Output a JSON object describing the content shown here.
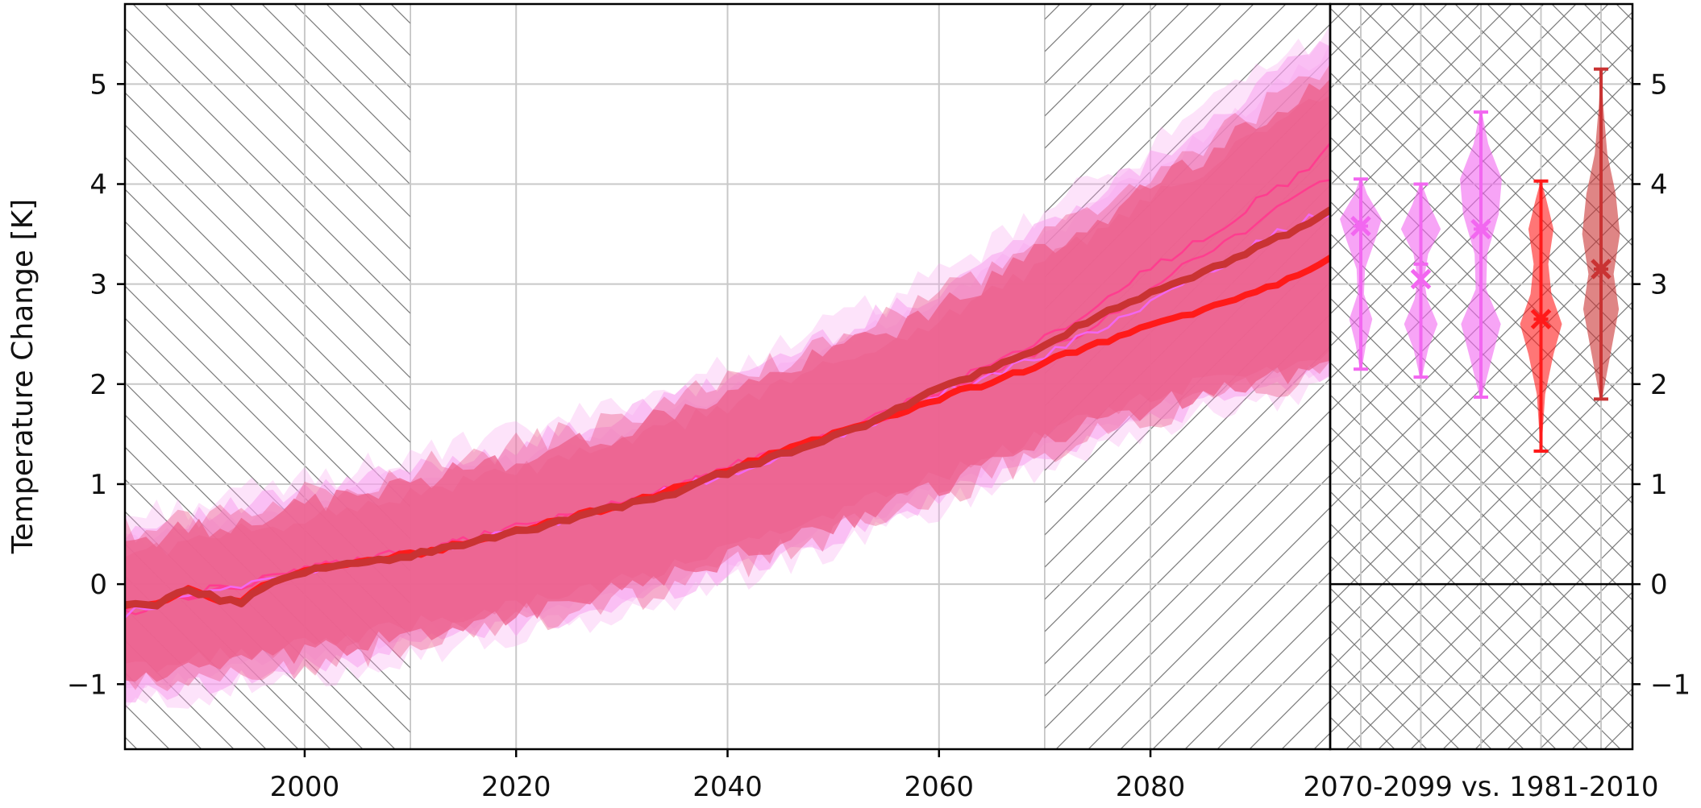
{
  "chart_data": [
    {
      "type": "line",
      "title": "",
      "xlabel": "",
      "ylabel": "Temperature Change [K]",
      "xlim": [
        1983,
        2097
      ],
      "ylim": [
        -1.65,
        5.8
      ],
      "xticks": [
        2000,
        2020,
        2040,
        2060,
        2080
      ],
      "yticks": [
        -1,
        0,
        1,
        2,
        3,
        4,
        5
      ],
      "ytick_labels": [
        "−1",
        "0",
        "1",
        "2",
        "3",
        "4",
        "5"
      ],
      "grid": true,
      "hatched_periods": [
        [
          1983,
          2010
        ],
        [
          2070,
          2097
        ]
      ],
      "colors": {
        "red": "#ff1a1a",
        "darkred": "#c93333",
        "pink": "#ff3d8f",
        "magenta": "#f267f0",
        "band": "#ec5f8a",
        "band_outer": "#f7a2ef"
      },
      "series": [
        {
          "x": [
            1983,
            1986,
            1989,
            1992,
            1994,
            1996,
            2000,
            2005,
            2010,
            2015,
            2020,
            2025,
            2030,
            2035,
            2040,
            2045,
            2050,
            2055,
            2060,
            2065,
            2070,
            2075,
            2080,
            2085,
            2090,
            2095,
            2097
          ],
          "values": [
            -0.22,
            -0.2,
            -0.06,
            -0.15,
            -0.18,
            -0.02,
            0.12,
            0.22,
            0.28,
            0.4,
            0.52,
            0.65,
            0.78,
            0.92,
            1.12,
            1.3,
            1.48,
            1.68,
            1.98,
            2.15,
            2.38,
            2.68,
            2.92,
            3.12,
            3.35,
            3.62,
            3.75
          ]
        },
        {
          "x": [
            1983,
            1986,
            1989,
            1992,
            1994,
            1996,
            2000,
            2005,
            2010,
            2015,
            2020,
            2025,
            2030,
            2035,
            2040,
            2045,
            2050,
            2055,
            2060,
            2065,
            2070,
            2075,
            2080,
            2085,
            2090,
            2095,
            2097
          ],
          "values": [
            -0.22,
            -0.2,
            -0.06,
            -0.15,
            -0.18,
            -0.02,
            0.12,
            0.22,
            0.3,
            0.4,
            0.53,
            0.66,
            0.8,
            0.95,
            1.13,
            1.33,
            1.5,
            1.68,
            1.86,
            2.02,
            2.22,
            2.4,
            2.58,
            2.73,
            2.92,
            3.12,
            3.26
          ]
        },
        {
          "x": [
            1983,
            1990,
            2000,
            2010,
            2020,
            2030,
            2040,
            2050,
            2060,
            2070,
            2075,
            2080,
            2085,
            2090,
            2095,
            2097
          ],
          "values": [
            -0.28,
            -0.1,
            0.15,
            0.32,
            0.55,
            0.8,
            1.16,
            1.5,
            1.95,
            2.45,
            2.8,
            3.15,
            3.45,
            3.82,
            4.15,
            4.45
          ]
        },
        {
          "x": [
            1983,
            1990,
            2000,
            2010,
            2020,
            2030,
            2040,
            2050,
            2060,
            2070,
            2075,
            2080,
            2085,
            2090,
            2095,
            2097
          ],
          "values": [
            -0.25,
            -0.08,
            0.14,
            0.3,
            0.56,
            0.82,
            1.14,
            1.46,
            1.9,
            2.35,
            2.6,
            2.95,
            3.3,
            3.6,
            3.95,
            4.05
          ]
        },
        {
          "x": [
            1983,
            1990,
            2000,
            2010,
            2020,
            2030,
            2040,
            2050,
            2060,
            2070,
            2075,
            2080,
            2085,
            2090,
            2095,
            2097
          ],
          "values": [
            -0.3,
            -0.1,
            0.12,
            0.3,
            0.52,
            0.8,
            1.1,
            1.45,
            1.9,
            2.3,
            2.55,
            2.8,
            3.1,
            3.4,
            3.65,
            3.72
          ]
        }
      ],
      "bands": [
        {
          "x": [
            1983,
            1990,
            2000,
            2010,
            2020,
            2030,
            2040,
            2050,
            2060,
            2070,
            2080,
            2090,
            2097
          ],
          "lower": [
            -1.15,
            -1.0,
            -0.85,
            -0.6,
            -0.42,
            -0.22,
            0.12,
            0.45,
            0.85,
            1.3,
            1.65,
            1.92,
            2.1
          ],
          "upper": [
            0.55,
            0.68,
            0.92,
            1.15,
            1.38,
            1.68,
            2.05,
            2.5,
            2.95,
            3.6,
            4.25,
            4.95,
            5.45
          ]
        },
        {
          "x": [
            1983,
            1990,
            2000,
            2010,
            2020,
            2030,
            2040,
            2050,
            2060,
            2070,
            2080,
            2090,
            2097
          ],
          "lower": [
            -0.95,
            -0.85,
            -0.72,
            -0.5,
            -0.3,
            -0.08,
            0.25,
            0.58,
            0.98,
            1.42,
            1.78,
            2.05,
            2.2
          ],
          "upper": [
            0.42,
            0.55,
            0.78,
            1.02,
            1.25,
            1.52,
            1.9,
            2.32,
            2.75,
            3.35,
            3.95,
            4.6,
            5.05
          ]
        }
      ]
    },
    {
      "type": "violin",
      "xlabel": "2070-2099 vs. 1981-2010",
      "ylim": [
        -1.65,
        5.8
      ],
      "yticks": [
        -1,
        0,
        1,
        2,
        3,
        4,
        5
      ],
      "ytick_labels": [
        "−1",
        "0",
        "1",
        "2",
        "3",
        "4",
        "5"
      ],
      "violins": [
        {
          "min": 2.15,
          "max": 4.05,
          "median": 3.58,
          "mean": 3.58,
          "color": "#f267f0",
          "profile": [
            [
              2.15,
              0.05
            ],
            [
              2.4,
              0.25
            ],
            [
              2.65,
              0.55
            ],
            [
              2.9,
              0.15
            ],
            [
              3.15,
              0.2
            ],
            [
              3.45,
              0.7
            ],
            [
              3.65,
              1.0
            ],
            [
              3.9,
              0.3
            ],
            [
              4.05,
              0.05
            ]
          ]
        },
        {
          "min": 2.07,
          "max": 4.0,
          "median": 3.2,
          "mean": 3.05,
          "color": "#f267f0",
          "profile": [
            [
              2.07,
              0.05
            ],
            [
              2.35,
              0.35
            ],
            [
              2.6,
              0.8
            ],
            [
              2.85,
              0.3
            ],
            [
              3.05,
              0.15
            ],
            [
              3.3,
              0.35
            ],
            [
              3.55,
              0.95
            ],
            [
              3.8,
              0.4
            ],
            [
              4.0,
              0.05
            ]
          ]
        },
        {
          "min": 1.87,
          "max": 4.72,
          "median": 3.55,
          "mean": 3.55,
          "color": "#f267f0",
          "profile": [
            [
              1.87,
              0.05
            ],
            [
              2.2,
              0.45
            ],
            [
              2.6,
              0.95
            ],
            [
              2.95,
              0.25
            ],
            [
              3.3,
              0.3
            ],
            [
              3.7,
              0.85
            ],
            [
              4.05,
              1.0
            ],
            [
              4.4,
              0.35
            ],
            [
              4.72,
              0.05
            ]
          ]
        },
        {
          "min": 1.33,
          "max": 4.03,
          "median": 2.65,
          "mean": 2.65,
          "color": "#ff1a1a",
          "profile": [
            [
              1.33,
              0.02
            ],
            [
              1.9,
              0.2
            ],
            [
              2.3,
              0.6
            ],
            [
              2.6,
              1.0
            ],
            [
              2.9,
              0.5
            ],
            [
              3.2,
              0.35
            ],
            [
              3.55,
              0.6
            ],
            [
              3.85,
              0.25
            ],
            [
              4.03,
              0.02
            ]
          ]
        },
        {
          "min": 1.85,
          "max": 5.15,
          "median": 3.15,
          "mean": 3.15,
          "color": "#c93333",
          "profile": [
            [
              1.85,
              0.05
            ],
            [
              2.3,
              0.45
            ],
            [
              2.75,
              0.85
            ],
            [
              3.1,
              0.6
            ],
            [
              3.5,
              0.9
            ],
            [
              3.9,
              0.7
            ],
            [
              4.3,
              0.3
            ],
            [
              4.8,
              0.1
            ],
            [
              5.15,
              0.02
            ]
          ]
        }
      ]
    }
  ]
}
